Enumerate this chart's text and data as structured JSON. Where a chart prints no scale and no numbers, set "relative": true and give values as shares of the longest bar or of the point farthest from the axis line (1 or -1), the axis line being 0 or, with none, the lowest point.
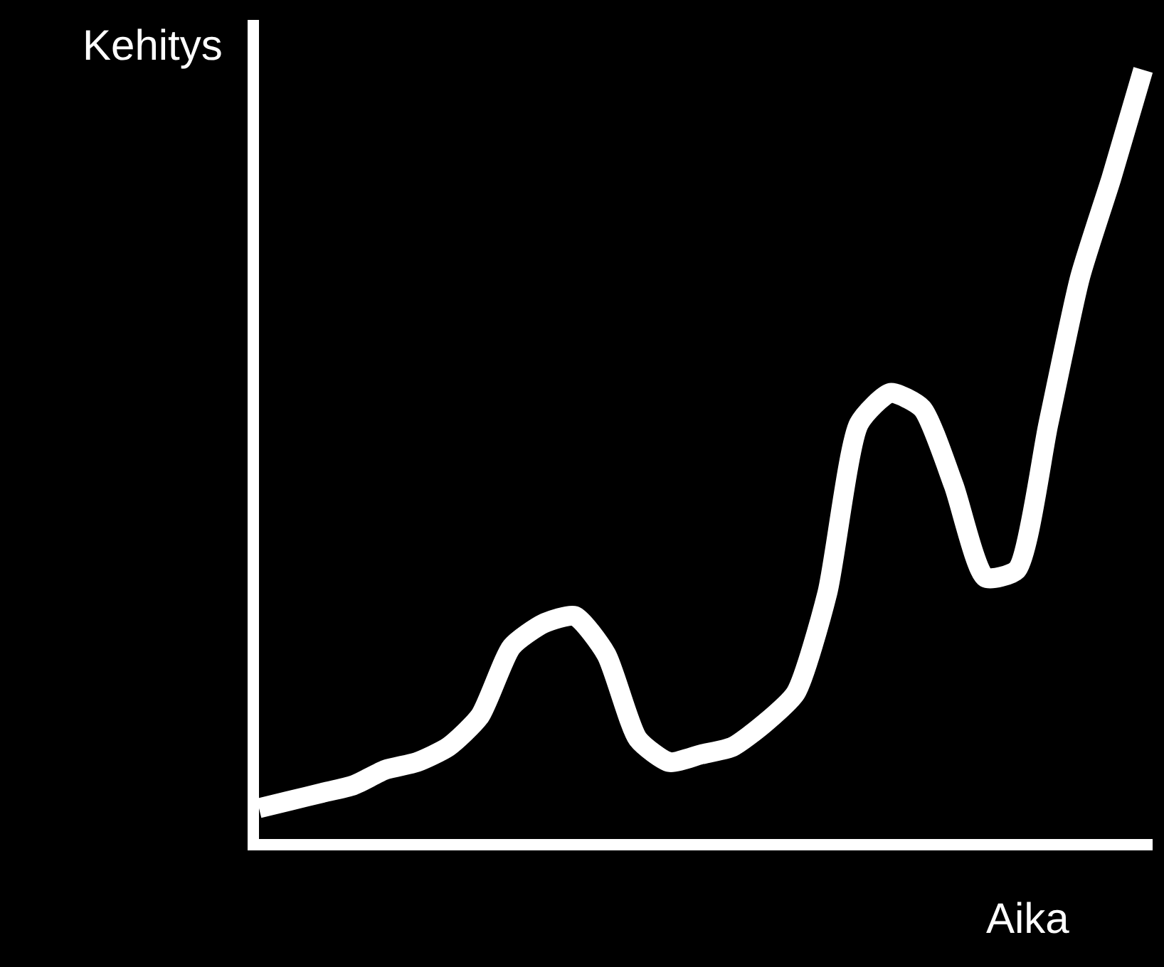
{
  "chart_data": {
    "type": "line",
    "relative": true,
    "xlabel": "Aika",
    "ylabel": "Kehitys",
    "categories": [
      null,
      null,
      null,
      null,
      null,
      null,
      null,
      null,
      null,
      null,
      null,
      null,
      null,
      null,
      null,
      null,
      null,
      null,
      null,
      null,
      null,
      null,
      null,
      null,
      null,
      null,
      null,
      null,
      null
    ],
    "series": [
      {
        "color": "#ffffff",
        "values": [
          0.04,
          0.05,
          0.06,
          0.07,
          0.09,
          0.1,
          0.12,
          0.16,
          0.25,
          0.28,
          0.29,
          0.24,
          0.13,
          0.1,
          0.11,
          0.12,
          0.15,
          0.19,
          0.32,
          0.54,
          0.58,
          0.56,
          0.46,
          0.34,
          0.35,
          0.54,
          0.73,
          0.86,
          1
        ]
      }
    ],
    "grid": false,
    "marker": "none",
    "line_style": "solid"
  }
}
